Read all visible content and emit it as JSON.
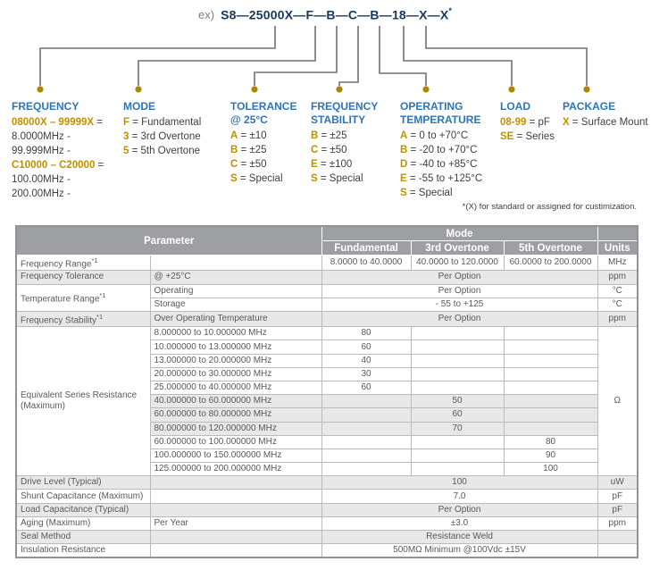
{
  "part_number": {
    "prefix": "ex)",
    "code": "S8—25000X—F—B—C—B—18—X—X",
    "superscript": "*"
  },
  "colors": {
    "title_navy": "#17375e",
    "heading_blue": "#2e75b6",
    "code_gold": "#bf9000",
    "connector_gray": "#6f7174",
    "dot_gold": "#ad8600",
    "table_header_gray": "#9d9fa2",
    "row_stripe_gray": "#e8e8e9"
  },
  "legend": {
    "columns": [
      {
        "id": "frequency",
        "heading": [
          "FREQUENCY"
        ],
        "items": [
          {
            "key": "08000X – 99999X",
            "value": ""
          },
          {
            "value": "8.0000MHz -"
          },
          {
            "value": "99.999MHz -"
          },
          {
            "key": "C10000 – C20000",
            "value": ""
          },
          {
            "value": "100.00MHz -"
          },
          {
            "value": "200.00MHz -"
          }
        ]
      },
      {
        "id": "mode",
        "heading": [
          "MODE"
        ],
        "items": [
          {
            "key": "F",
            "value": "Fundamental"
          },
          {
            "key": "3",
            "value": "3rd Overtone"
          },
          {
            "key": "5",
            "value": "5th Overtone"
          }
        ]
      },
      {
        "id": "tolerance",
        "heading": [
          "TOLERANCE",
          "@ 25°C"
        ],
        "items": [
          {
            "key": "A",
            "value": "±10"
          },
          {
            "key": "B",
            "value": "±25"
          },
          {
            "key": "C",
            "value": "±50"
          },
          {
            "key": "S",
            "value": "Special"
          }
        ]
      },
      {
        "id": "frequency-stability",
        "heading": [
          "FREQUENCY",
          "STABILITY"
        ],
        "items": [
          {
            "key": "B",
            "value": "±25"
          },
          {
            "key": "C",
            "value": "±50"
          },
          {
            "key": "E",
            "value": "±100"
          },
          {
            "key": "S",
            "value": "Special"
          }
        ]
      },
      {
        "id": "operating-temperature",
        "heading": [
          "OPERATING",
          "TEMPERATURE"
        ],
        "items": [
          {
            "key": "A",
            "value": "0 to +70°C"
          },
          {
            "key": "B",
            "value": "-20 to +70°C"
          },
          {
            "key": "D",
            "value": "-40 to +85°C"
          },
          {
            "key": "E",
            "value": "-55 to +125°C"
          },
          {
            "key": "S",
            "value": "Special"
          }
        ]
      },
      {
        "id": "load",
        "heading": [
          "LOAD"
        ],
        "items": [
          {
            "key": "08-99",
            "value": "pF"
          },
          {
            "key": "SE",
            "value": "Series"
          }
        ]
      },
      {
        "id": "package",
        "heading": [
          "PACKAGE"
        ],
        "items": [
          {
            "key": "X",
            "value": "Surface Mount"
          }
        ]
      }
    ]
  },
  "footnote": "*(X) for standard or assigned for custimization.",
  "table": {
    "header": {
      "parameter": "Parameter",
      "mode": "Mode",
      "fundamental": "Fundamental",
      "third": "3rd Overtone",
      "fifth": "5th Overtone",
      "units": "Units"
    },
    "rows": [
      {
        "group": 0,
        "name": {
          "text": "Frequency Range",
          "sup": "*1"
        },
        "cond": "",
        "mode": {
          "f": "8.0000 to 40.0000",
          "t3": "40.0000 to 120.0000",
          "t5": "60.0000 to 200.0000"
        },
        "units": {
          "text": "MHz"
        }
      },
      {
        "group": 1,
        "name": {
          "text": "Frequency Tolerance"
        },
        "cond": "@ +25°C",
        "mode": {
          "span": "Per Option"
        },
        "units": {
          "text": "ppm"
        }
      },
      {
        "group": 2,
        "name": {
          "text": "Temperature Range",
          "sup": "*1",
          "rowspan": 2
        },
        "cond": "Operating",
        "mode": {
          "span": "Per Option"
        },
        "units": {
          "text": "°C"
        }
      },
      {
        "group": 2,
        "cond": "Storage",
        "mode": {
          "span": "- 55 to +125"
        },
        "units": {
          "text": "°C"
        }
      },
      {
        "group": 3,
        "name": {
          "text": "Frequency Stability",
          "sup": "*1"
        },
        "cond": "Over Operating Temperature",
        "mode": {
          "span": "Per Option"
        },
        "units": {
          "text": "ppm"
        }
      },
      {
        "group": 4,
        "name": {
          "text": "Equivalent Series Resistance (Maximum)",
          "rowspan": 11
        },
        "cond": "8.000000 to 10.000000 MHz",
        "mode": {
          "f": "80",
          "t3": "",
          "t5": ""
        },
        "units": {
          "text": "Ω",
          "rowspan": 11
        }
      },
      {
        "group": 4,
        "cond": "10.000000 to 13.000000 MHz",
        "mode": {
          "f": "60",
          "t3": "",
          "t5": ""
        }
      },
      {
        "group": 4,
        "cond": "13.000000 to 20.000000 MHz",
        "mode": {
          "f": "40",
          "t3": "",
          "t5": ""
        }
      },
      {
        "group": 4,
        "cond": "20.000000 to 30.000000 MHz",
        "mode": {
          "f": "30",
          "t3": "",
          "t5": ""
        }
      },
      {
        "group": 4,
        "cond": "25.000000 to 40.000000 MHz",
        "mode": {
          "f": "60",
          "t3": "",
          "t5": ""
        }
      },
      {
        "group": 5,
        "cond": "40.000000 to 60.000000 MHz",
        "mode": {
          "f": "",
          "t3": "50",
          "t5": ""
        }
      },
      {
        "group": 5,
        "cond": "60.000000 to 80.000000 MHz",
        "mode": {
          "f": "",
          "t3": "60",
          "t5": ""
        }
      },
      {
        "group": 5,
        "cond": "80.000000 to 120.000000 MHz",
        "mode": {
          "f": "",
          "t3": "70",
          "t5": ""
        }
      },
      {
        "group": 6,
        "cond": "60.000000 to 100.000000 MHz",
        "mode": {
          "f": "",
          "t3": "",
          "t5": "80"
        }
      },
      {
        "group": 6,
        "cond": "100.000000 to 150.000000 MHz",
        "mode": {
          "f": "",
          "t3": "",
          "t5": "90"
        }
      },
      {
        "group": 6,
        "cond": "125.000000 to 200.000000 MHz",
        "mode": {
          "f": "",
          "t3": "",
          "t5": "100"
        }
      },
      {
        "group": 7,
        "name": {
          "text": "Drive Level (Typical)"
        },
        "cond": "",
        "mode": {
          "span": "100"
        },
        "units": {
          "text": "uW"
        }
      },
      {
        "group": 8,
        "name": {
          "text": "Shunt Capacitance (Maximum)"
        },
        "cond": "",
        "mode": {
          "span": "7.0"
        },
        "units": {
          "text": "pF"
        }
      },
      {
        "group": 9,
        "name": {
          "text": "Load Capacitance (Typical)"
        },
        "cond": "",
        "mode": {
          "span": "Per Option"
        },
        "units": {
          "text": "pF"
        }
      },
      {
        "group": 10,
        "name": {
          "text": "Aging (Maximum)"
        },
        "cond": "Per Year",
        "mode": {
          "span": "±3.0"
        },
        "units": {
          "text": "ppm"
        }
      },
      {
        "group": 11,
        "name": {
          "text": "Seal Method"
        },
        "cond": "",
        "mode": {
          "span": "Resistance Weld"
        },
        "units": {
          "text": ""
        }
      },
      {
        "group": 12,
        "name": {
          "text": "Insulation Resistance"
        },
        "cond": "",
        "mode": {
          "span": "500MΩ Minimum @100Vdc ±15V"
        },
        "units": {
          "text": ""
        }
      }
    ]
  }
}
